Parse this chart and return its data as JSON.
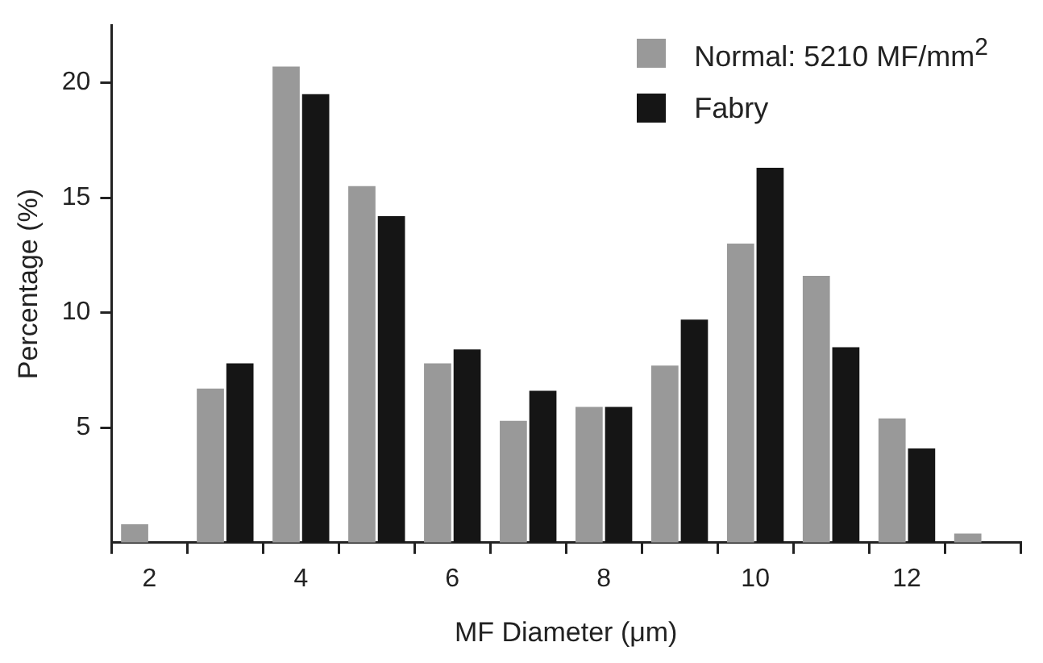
{
  "chart_data": {
    "type": "bar",
    "xlabel": "MF Diameter (μm)",
    "ylabel": "Percentage (%)",
    "categories": [
      "2",
      null,
      "4",
      null,
      "6",
      null,
      "8",
      null,
      "10",
      null,
      "12",
      null
    ],
    "series": [
      {
        "name": "Normal: 5210 MF/mm$^{2}$",
        "color": "#999999",
        "values": [
          0.8,
          6.7,
          20.7,
          15.5,
          7.8,
          5.3,
          5.9,
          7.7,
          13.0,
          11.6,
          5.4,
          0.4
        ]
      },
      {
        "name": "Fabry",
        "color": "#151515",
        "values": [
          null,
          7.8,
          19.5,
          14.2,
          8.4,
          6.6,
          5.9,
          9.7,
          16.3,
          8.5,
          4.1,
          null
        ]
      }
    ],
    "ylim": [
      0,
      22.5
    ],
    "yticks": [
      5,
      10,
      15,
      20
    ],
    "grid": false,
    "legend": "top right"
  }
}
